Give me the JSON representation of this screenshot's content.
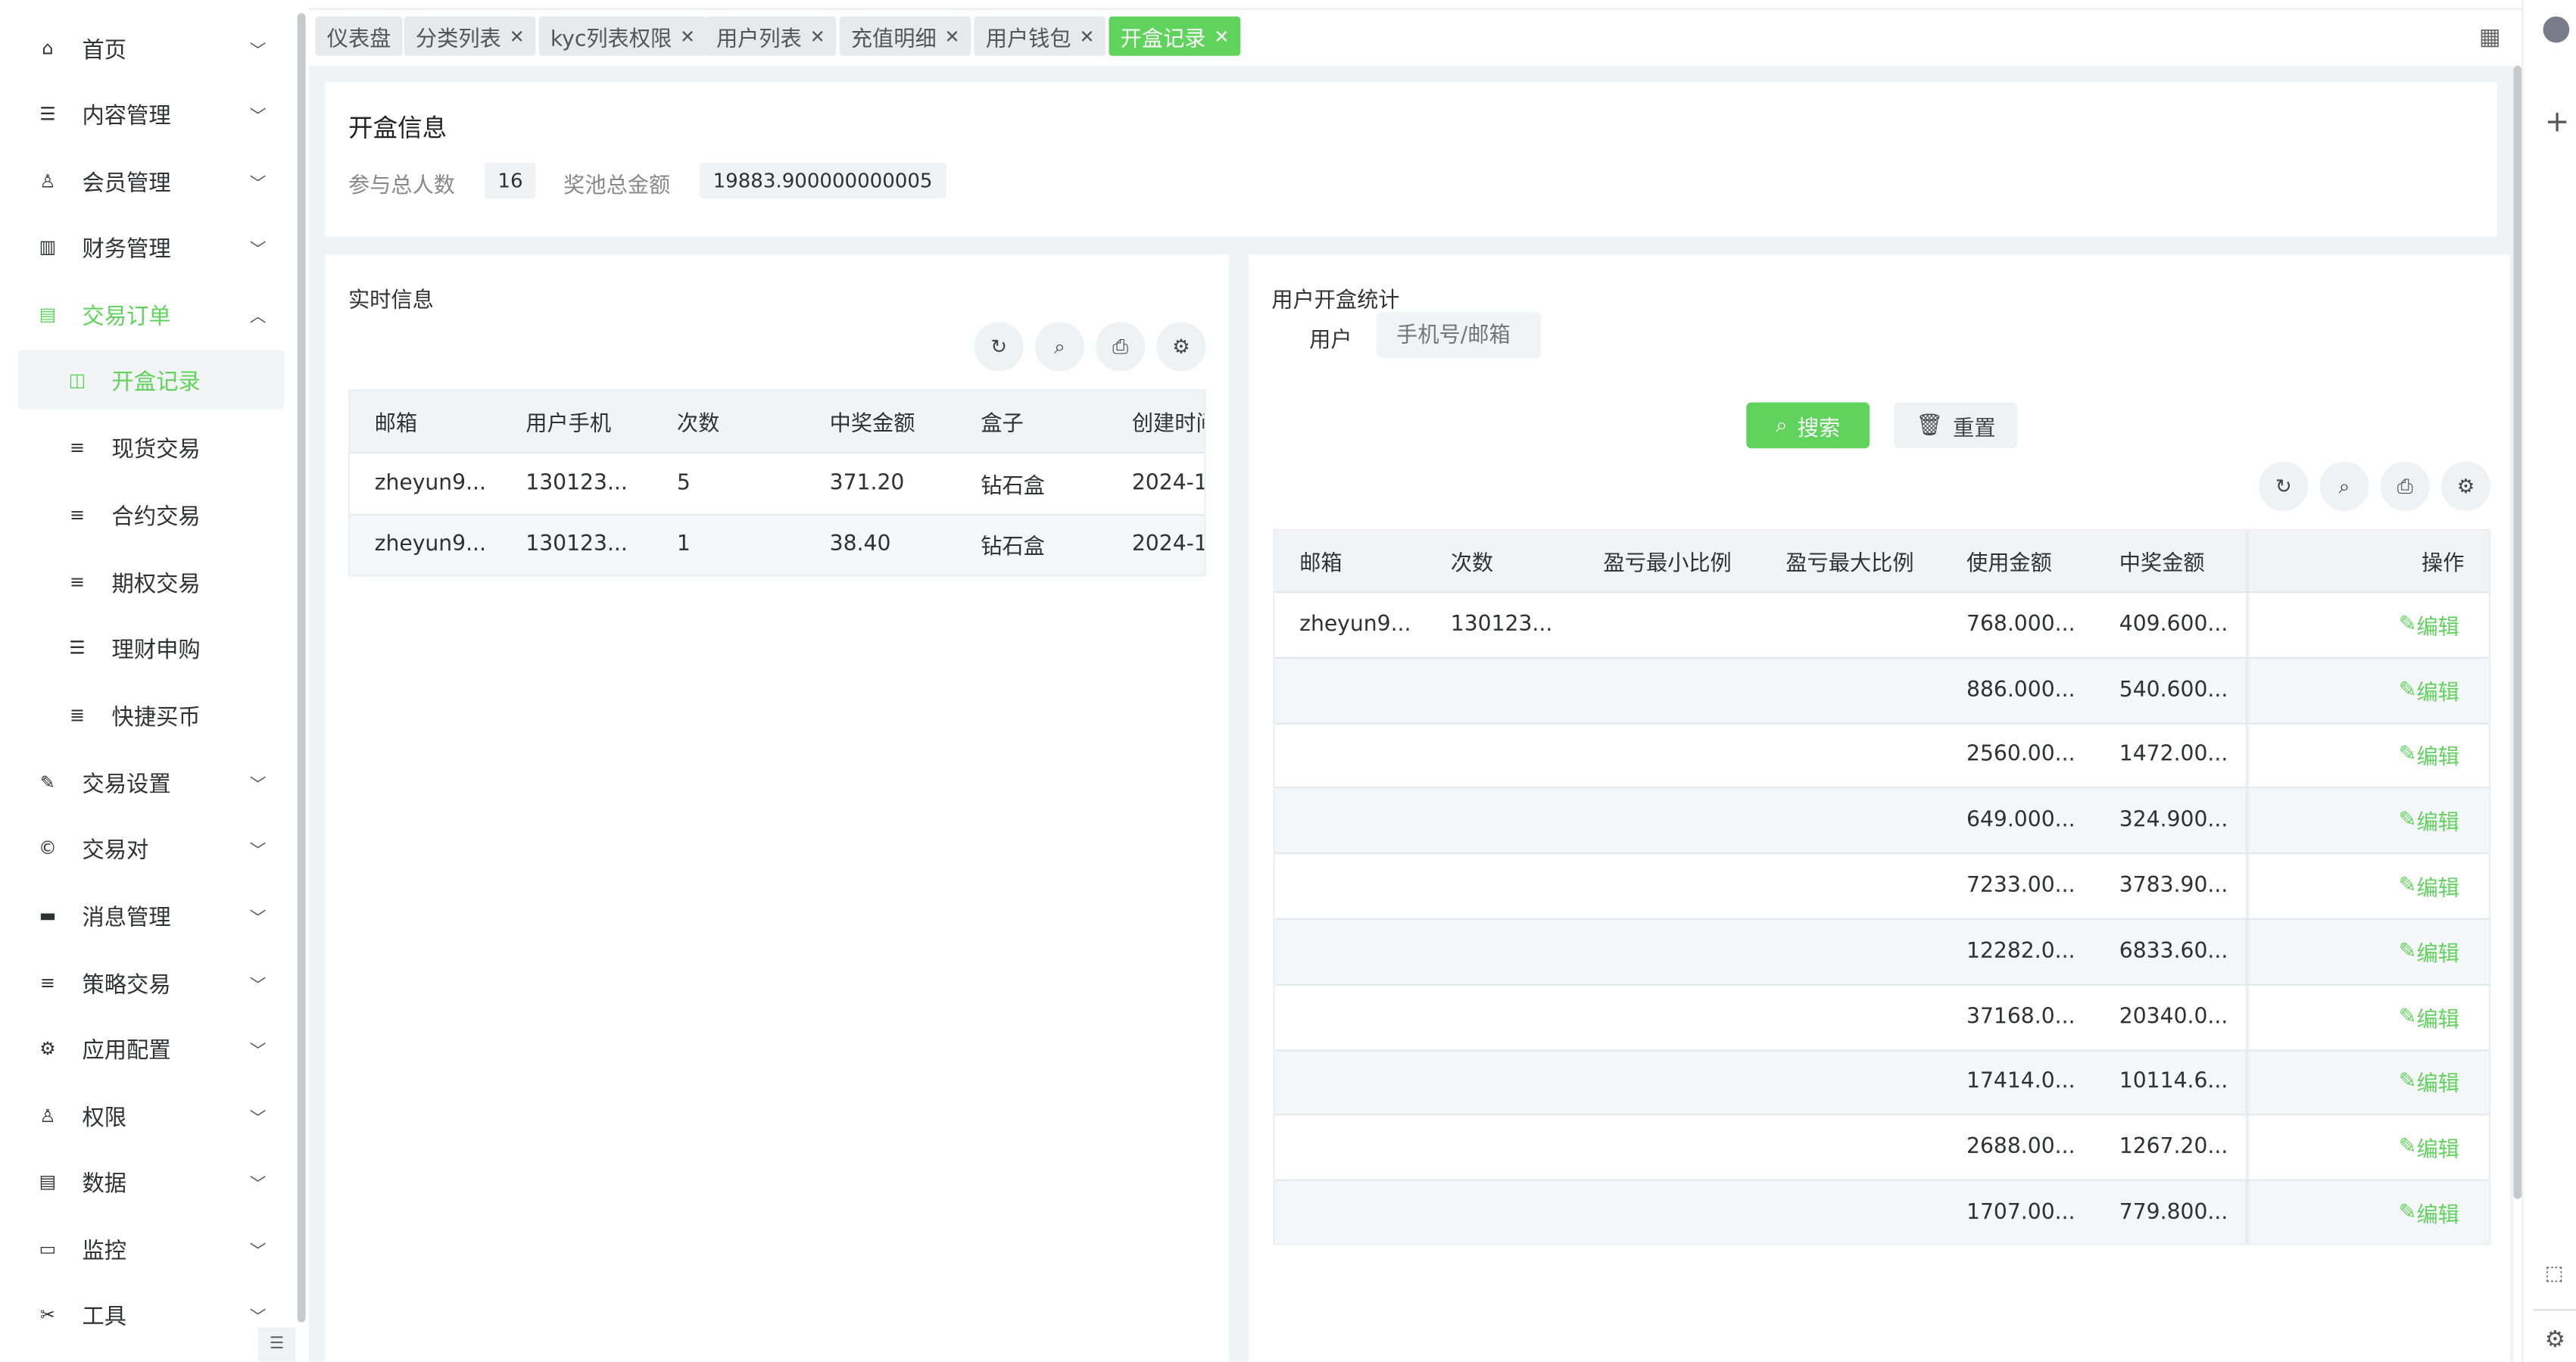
{
  "colors": {
    "accent": "#5fd35c",
    "bg": "#f0f2f5"
  },
  "sidebar": {
    "items": [
      {
        "label": "首页",
        "icon": "home-icon"
      },
      {
        "label": "内容管理",
        "icon": "list-icon"
      },
      {
        "label": "会员管理",
        "icon": "user-icon"
      },
      {
        "label": "财务管理",
        "icon": "finance-icon"
      },
      {
        "label": "交易订单",
        "icon": "table-icon"
      },
      {
        "label": "开盒记录",
        "icon": "box-icon"
      },
      {
        "label": "现货交易",
        "icon": "menu-icon"
      },
      {
        "label": "合约交易",
        "icon": "menu-icon"
      },
      {
        "label": "期权交易",
        "icon": "menu-icon"
      },
      {
        "label": "理财申购",
        "icon": "list-icon"
      },
      {
        "label": "快捷买币",
        "icon": "text-icon"
      },
      {
        "label": "交易设置",
        "icon": "wrench-icon"
      },
      {
        "label": "交易对",
        "icon": "copyright-icon"
      },
      {
        "label": "消息管理",
        "icon": "message-icon"
      },
      {
        "label": "策略交易",
        "icon": "menu-icon"
      },
      {
        "label": "应用配置",
        "icon": "config-icon"
      },
      {
        "label": "权限",
        "icon": "user-lock-icon"
      },
      {
        "label": "数据",
        "icon": "data-icon"
      },
      {
        "label": "监控",
        "icon": "monitor-icon"
      },
      {
        "label": "工具",
        "icon": "tools-icon"
      }
    ]
  },
  "tabs": [
    {
      "label": "仪表盘"
    },
    {
      "label": "分类列表"
    },
    {
      "label": "kyc列表权限"
    },
    {
      "label": "用户列表"
    },
    {
      "label": "充值明细"
    },
    {
      "label": "用户钱包"
    },
    {
      "label": "开盒记录"
    }
  ],
  "info": {
    "title": "开盒信息",
    "participants_label": "参与总人数",
    "participants": "16",
    "pool_label": "奖池总金额",
    "pool": "19883.900000000005"
  },
  "realtime": {
    "title": "实时信息",
    "columns": [
      "邮箱",
      "用户手机",
      "次数",
      "中奖金额",
      "盒子",
      "创建时间"
    ],
    "rows": [
      [
        "zheyun9...",
        "130123...",
        "5",
        "371.20",
        "钻石盒",
        "2024-1"
      ],
      [
        "zheyun9...",
        "130123...",
        "1",
        "38.40",
        "钻石盒",
        "2024-1"
      ]
    ]
  },
  "stats": {
    "title": "用户开盒统计",
    "user_label": "用户",
    "user_placeholder": "手机号/邮箱",
    "search_label": "搜索",
    "reset_label": "重置",
    "columns": [
      "邮箱",
      "次数",
      "盈亏最小比例",
      "盈亏最大比例",
      "使用金额",
      "中奖金额",
      "操作"
    ],
    "edit_label": "编辑",
    "rows": [
      [
        "zheyun9...",
        "130123...",
        "",
        "",
        "768.000...",
        "409.600..."
      ],
      [
        "",
        "",
        "",
        "",
        "886.000...",
        "540.600..."
      ],
      [
        "",
        "",
        "",
        "",
        "2560.00...",
        "1472.00..."
      ],
      [
        "",
        "",
        "",
        "",
        "649.000...",
        "324.900..."
      ],
      [
        "",
        "",
        "",
        "",
        "7233.00...",
        "3783.90..."
      ],
      [
        "",
        "",
        "",
        "",
        "12282.0...",
        "6833.60..."
      ],
      [
        "",
        "",
        "",
        "",
        "37168.0...",
        "20340.0..."
      ],
      [
        "",
        "",
        "",
        "",
        "17414.0...",
        "10114.6..."
      ],
      [
        "",
        "",
        "",
        "",
        "2688.00...",
        "1267.20..."
      ],
      [
        "",
        "",
        "",
        "",
        "1707.00...",
        "779.800..."
      ]
    ]
  }
}
